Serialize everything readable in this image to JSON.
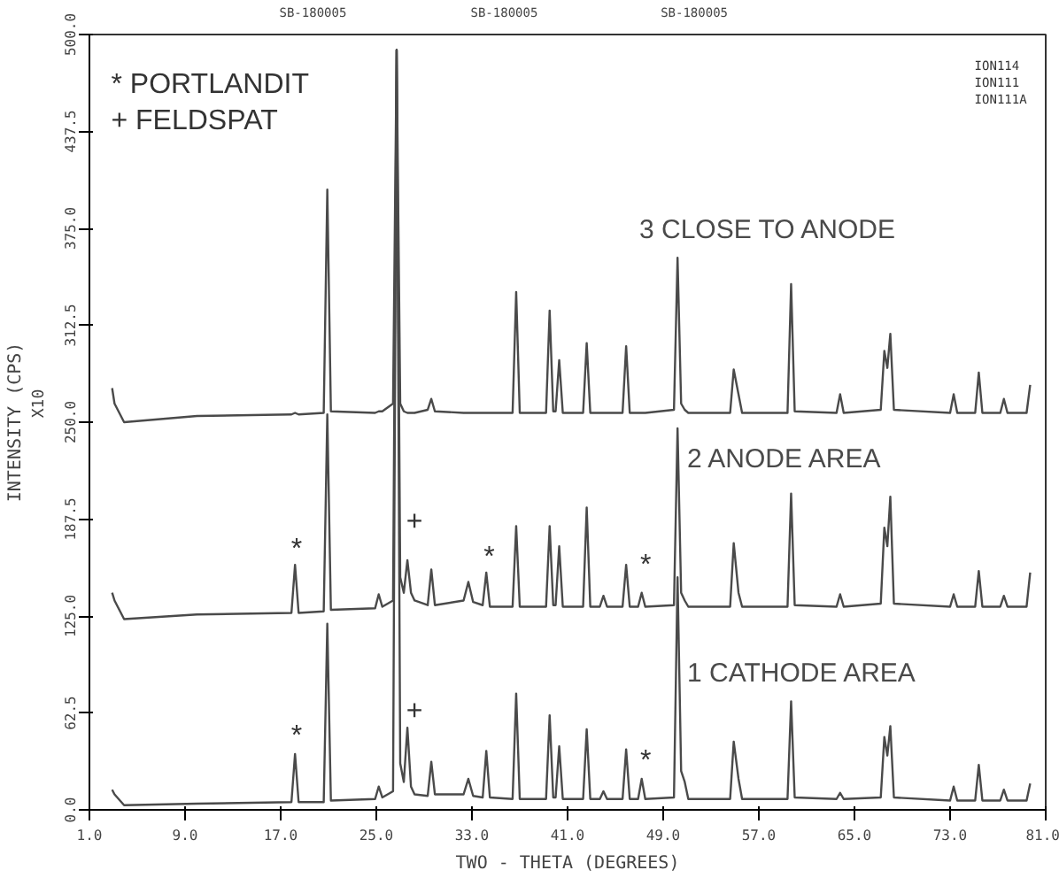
{
  "chart_data": {
    "type": "line",
    "xlabel": "TWO - THETA (DEGREES)",
    "ylabel": "INTENSITY (CPS)",
    "x": [
      2.9,
      3.1,
      3.9,
      10,
      17.9,
      18.2,
      18.5,
      20.6,
      20.9,
      21.2,
      24.9,
      25.2,
      25.5,
      26.4,
      26.7,
      27.0,
      27.3,
      27.6,
      27.9,
      28.2,
      29.3,
      29.6,
      29.9,
      32.3,
      32.7,
      33.1,
      33.9,
      34.2,
      34.5,
      36.4,
      36.7,
      37.0,
      39.2,
      39.5,
      39.8,
      40.0,
      40.3,
      40.6,
      42.3,
      42.6,
      42.9,
      43.7,
      44.0,
      44.3,
      45.6,
      45.9,
      46.2,
      46.9,
      47.2,
      47.5,
      49.9,
      50.2,
      50.5,
      50.8,
      51.1,
      54.6,
      54.9,
      55.3,
      55.6,
      59.4,
      59.7,
      60.0,
      63.5,
      63.8,
      64.1,
      67.2,
      67.5,
      67.75,
      68.0,
      68.3,
      73.0,
      73.3,
      73.6,
      75.1,
      75.4,
      75.7,
      77.2,
      77.5,
      77.8,
      79.4,
      79.7
    ],
    "series": [
      {
        "name": "1 CATHODE AREA",
        "color": "#4a4a4a",
        "values": [
          13,
          10,
          3,
          4,
          5,
          36,
          5,
          5,
          120,
          6,
          7,
          15,
          8,
          12,
          490,
          30,
          18,
          53,
          15,
          10,
          9,
          31,
          10,
          10,
          20,
          9,
          8,
          38,
          8,
          7,
          75,
          7,
          7,
          61,
          8,
          8,
          41,
          7,
          7,
          52,
          7,
          7,
          12,
          7,
          7,
          39,
          7,
          7,
          20,
          7,
          8,
          150,
          25,
          18,
          7,
          7,
          44,
          20,
          7,
          7,
          70,
          8,
          7,
          11,
          7,
          8,
          47,
          35,
          54,
          8,
          6,
          15,
          6,
          6,
          29,
          6,
          6,
          13,
          6,
          6,
          17
        ]
      },
      {
        "name": "2 ANODE AREA",
        "color": "#4a4a4a",
        "values": [
          140,
          135,
          123,
          126,
          127,
          158,
          127,
          128,
          255,
          129,
          130,
          139,
          131,
          135,
          490,
          150,
          140,
          161,
          140,
          135,
          132,
          155,
          132,
          135,
          147,
          134,
          132,
          153,
          131,
          131,
          183,
          131,
          131,
          183,
          132,
          132,
          170,
          131,
          131,
          195,
          131,
          131,
          138,
          131,
          131,
          158,
          131,
          131,
          140,
          131,
          132,
          246,
          140,
          135,
          131,
          131,
          172,
          140,
          131,
          131,
          204,
          132,
          131,
          139,
          131,
          133,
          182,
          170,
          202,
          133,
          131,
          139,
          131,
          131,
          154,
          131,
          131,
          138,
          131,
          131,
          153
        ]
      },
      {
        "name": "3  CLOSE TO ANODE",
        "color": "#4a4a4a",
        "values": [
          272,
          262,
          250,
          254,
          255,
          256,
          255,
          256,
          400,
          257,
          256,
          257,
          257,
          262,
          490,
          262,
          257,
          256,
          256,
          256,
          258,
          265,
          257,
          256,
          256,
          256,
          256,
          256,
          256,
          256,
          334,
          256,
          256,
          322,
          257,
          257,
          290,
          256,
          256,
          301,
          256,
          256,
          256,
          256,
          256,
          299,
          256,
          256,
          256,
          256,
          258,
          356,
          262,
          258,
          256,
          256,
          284,
          268,
          256,
          256,
          339,
          257,
          256,
          268,
          256,
          258,
          296,
          285,
          307,
          258,
          256,
          268,
          256,
          256,
          282,
          256,
          256,
          265,
          256,
          256,
          274
        ]
      }
    ],
    "xlim": [
      1,
      81
    ],
    "xticks": [
      {
        "value": 1,
        "label": "1.0"
      },
      {
        "value": 9,
        "label": "9.0"
      },
      {
        "value": 17,
        "label": "17.0"
      },
      {
        "value": 25,
        "label": "25.0"
      },
      {
        "value": 33,
        "label": "33.0"
      },
      {
        "value": 41,
        "label": "41.0"
      },
      {
        "value": 49,
        "label": "49.0"
      },
      {
        "value": 57,
        "label": "57.0"
      },
      {
        "value": 65,
        "label": "65.0"
      },
      {
        "value": 73,
        "label": "73.0"
      },
      {
        "value": 81,
        "label": "81.0"
      }
    ],
    "ylim": [
      0,
      500
    ],
    "yticks": [
      {
        "value": 0,
        "label": "0.0"
      },
      62.5,
      {
        "value": 125,
        "label": "125.0"
      },
      187.5,
      {
        "value": 250,
        "label": "250.0"
      },
      312.5,
      {
        "value": 375,
        "label": "375.0"
      },
      437.5,
      {
        "value": 500,
        "label": "500.0"
      }
    ],
    "grid": false,
    "marker": "none",
    "line_style": "solid",
    "annotations": [
      "SB-180005",
      "SB-180005",
      "SB-180005",
      "ION114",
      "ION111",
      "ION111A",
      "* PORTLANDIT",
      "+  FELDSPAT",
      "X10",
      "*",
      "*",
      "*",
      "+",
      "*",
      "+",
      "*"
    ]
  }
}
